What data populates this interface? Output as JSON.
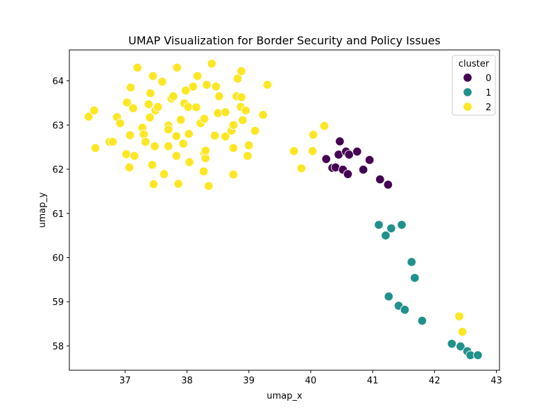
{
  "chart_data": {
    "type": "scatter",
    "title": "UMAP Visualization for Border Security and Policy Issues",
    "xlabel": "umap_x",
    "ylabel": "umap_y",
    "xlim": [
      36.1,
      43.05
    ],
    "ylim": [
      57.45,
      64.7
    ],
    "xticks": [
      "37",
      "38",
      "39",
      "40",
      "41",
      "42",
      "43"
    ],
    "yticks": [
      "58",
      "59",
      "60",
      "61",
      "62",
      "63",
      "64"
    ],
    "grid": false,
    "legend": {
      "title": "cluster",
      "placement": "top-right"
    },
    "series": [
      {
        "name": "0",
        "color": "#440154",
        "points": [
          [
            40.25,
            62.23
          ],
          [
            40.35,
            62.03
          ],
          [
            40.4,
            62.04
          ],
          [
            40.45,
            62.33
          ],
          [
            40.47,
            62.63
          ],
          [
            40.52,
            61.99
          ],
          [
            40.57,
            62.4
          ],
          [
            40.62,
            62.33
          ],
          [
            40.6,
            61.89
          ],
          [
            40.75,
            62.4
          ],
          [
            40.85,
            61.99
          ],
          [
            40.95,
            62.21
          ],
          [
            41.12,
            61.77
          ],
          [
            41.25,
            61.65
          ]
        ]
      },
      {
        "name": "1",
        "color": "#21918c",
        "points": [
          [
            41.1,
            60.74
          ],
          [
            41.21,
            60.5
          ],
          [
            41.3,
            60.66
          ],
          [
            41.47,
            60.74
          ],
          [
            41.63,
            59.9
          ],
          [
            41.68,
            59.54
          ],
          [
            41.26,
            59.12
          ],
          [
            41.42,
            58.91
          ],
          [
            41.52,
            58.82
          ],
          [
            41.8,
            58.57
          ],
          [
            42.28,
            58.05
          ],
          [
            42.42,
            57.99
          ],
          [
            42.53,
            57.88
          ],
          [
            42.58,
            57.79
          ],
          [
            42.7,
            57.79
          ]
        ]
      },
      {
        "name": "2",
        "color": "#fde725",
        "points": [
          [
            36.41,
            63.19
          ],
          [
            36.5,
            63.33
          ],
          [
            36.52,
            62.48
          ],
          [
            36.75,
            62.62
          ],
          [
            36.8,
            62.62
          ],
          [
            36.87,
            63.18
          ],
          [
            36.92,
            63.04
          ],
          [
            37.02,
            62.34
          ],
          [
            37.03,
            63.51
          ],
          [
            37.07,
            62.04
          ],
          [
            37.08,
            62.77
          ],
          [
            37.09,
            63.85
          ],
          [
            37.13,
            63.38
          ],
          [
            37.15,
            62.3
          ],
          [
            37.2,
            64.3
          ],
          [
            37.28,
            62.94
          ],
          [
            37.3,
            62.79
          ],
          [
            37.33,
            62.62
          ],
          [
            37.38,
            63.47
          ],
          [
            37.4,
            63.17
          ],
          [
            37.41,
            63.72
          ],
          [
            37.44,
            62.1
          ],
          [
            37.46,
            61.66
          ],
          [
            37.45,
            64.11
          ],
          [
            37.48,
            62.52
          ],
          [
            37.49,
            63.33
          ],
          [
            37.53,
            63.41
          ],
          [
            37.6,
            63.98
          ],
          [
            37.63,
            61.89
          ],
          [
            37.7,
            62.52
          ],
          [
            37.7,
            62.99
          ],
          [
            37.7,
            62.9
          ],
          [
            37.75,
            63.6
          ],
          [
            37.78,
            63.65
          ],
          [
            37.83,
            62.3
          ],
          [
            37.83,
            62.75
          ],
          [
            37.84,
            64.3
          ],
          [
            37.86,
            61.67
          ],
          [
            37.9,
            63.12
          ],
          [
            37.94,
            62.58
          ],
          [
            37.96,
            63.49
          ],
          [
            37.98,
            63.78
          ],
          [
            38.02,
            63.41
          ],
          [
            38.03,
            62.8
          ],
          [
            38.04,
            62.16
          ],
          [
            38.1,
            63.87
          ],
          [
            38.15,
            63.4
          ],
          [
            38.17,
            64.11
          ],
          [
            38.22,
            63.04
          ],
          [
            38.27,
            61.95
          ],
          [
            38.28,
            62.37
          ],
          [
            38.28,
            63.14
          ],
          [
            38.3,
            62.25
          ],
          [
            38.3,
            62.42
          ],
          [
            38.32,
            63.91
          ],
          [
            38.35,
            61.62
          ],
          [
            38.4,
            64.39
          ],
          [
            38.45,
            62.76
          ],
          [
            38.47,
            63.87
          ],
          [
            38.5,
            63.27
          ],
          [
            38.52,
            63.65
          ],
          [
            38.62,
            63.29
          ],
          [
            38.62,
            62.74
          ],
          [
            38.72,
            62.87
          ],
          [
            38.75,
            63.0
          ],
          [
            38.75,
            62.48
          ],
          [
            38.75,
            61.88
          ],
          [
            38.8,
            63.65
          ],
          [
            38.82,
            64.05
          ],
          [
            38.87,
            63.41
          ],
          [
            38.88,
            64.22
          ],
          [
            38.88,
            63.63
          ],
          [
            38.9,
            63.11
          ],
          [
            38.95,
            63.33
          ],
          [
            38.98,
            62.3
          ],
          [
            39.0,
            62.54
          ],
          [
            39.1,
            62.87
          ],
          [
            39.23,
            63.23
          ],
          [
            39.3,
            63.91
          ],
          [
            39.73,
            62.41
          ],
          [
            39.85,
            62.02
          ],
          [
            40.03,
            62.41
          ],
          [
            40.04,
            62.78
          ],
          [
            40.22,
            62.98
          ],
          [
            42.4,
            58.67
          ],
          [
            42.45,
            58.32
          ]
        ]
      }
    ]
  }
}
